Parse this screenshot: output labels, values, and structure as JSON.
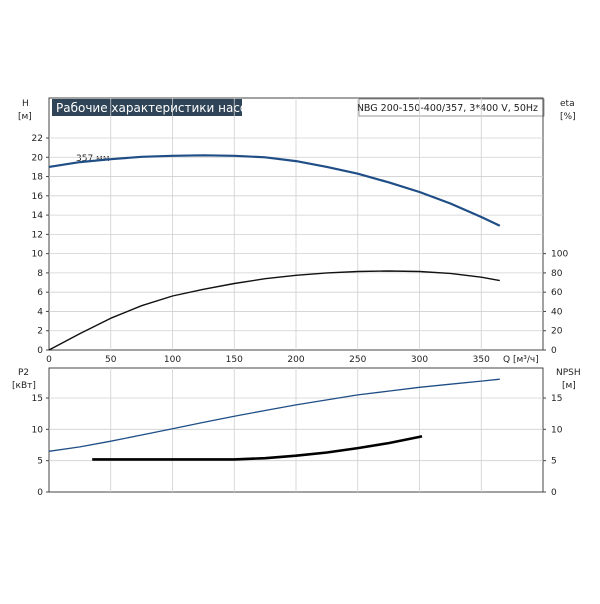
{
  "header": {
    "title": "Рабочие характеристики насоса",
    "model": "NBG 200-150-400/357, 3*400 V, 50Hz"
  },
  "colors": {
    "title_bg": "#2f4456",
    "title_text": "#ffffff",
    "head_curve": "#1f4e86",
    "eta_curve": "#111111",
    "p2_curve": "#1f4e86",
    "npsh_curve": "#000000",
    "grid": "#d0d0d0",
    "axis": "#444444"
  },
  "chart_data": [
    {
      "type": "line",
      "x_axis": {
        "label": "Q [м³/ч]",
        "xlim": [
          0,
          400
        ],
        "ticks": [
          0,
          50,
          100,
          150,
          200,
          250,
          300,
          350
        ]
      },
      "left_axis": {
        "label_top": "H",
        "label_unit": "[м]",
        "ylim": [
          0,
          24
        ],
        "ticks": [
          0,
          2,
          4,
          6,
          8,
          10,
          12,
          14,
          16,
          18,
          20,
          22
        ]
      },
      "right_axis": {
        "label_top": "eta",
        "label_unit": "[%]",
        "ylim": [
          0,
          240
        ],
        "ticks": [
          0,
          20,
          40,
          60,
          80,
          100
        ]
      },
      "annotation": "357 мм",
      "grid": true,
      "series": [
        {
          "axis": "left",
          "x": [
            0,
            25,
            50,
            75,
            100,
            125,
            150,
            175,
            200,
            225,
            250,
            275,
            300,
            325,
            350,
            365
          ],
          "y": [
            19.0,
            19.5,
            19.8,
            20.05,
            20.15,
            20.2,
            20.15,
            20.0,
            19.6,
            19.0,
            18.3,
            17.4,
            16.4,
            15.2,
            13.8,
            12.9
          ]
        },
        {
          "axis": "right",
          "x": [
            0,
            25,
            50,
            75,
            100,
            125,
            150,
            175,
            200,
            225,
            250,
            275,
            300,
            325,
            350,
            365
          ],
          "y": [
            0,
            17,
            33,
            46,
            56,
            63,
            69,
            74,
            77.5,
            80,
            81.5,
            82,
            81.5,
            79.5,
            75.5,
            72
          ]
        }
      ]
    },
    {
      "type": "line",
      "x_axis": {
        "xlim": [
          0,
          400
        ],
        "ticks": [
          0,
          50,
          100,
          150,
          200,
          250,
          300,
          350
        ]
      },
      "left_axis": {
        "label_top": "P2",
        "label_unit": "[кВт]",
        "ylim": [
          0,
          20
        ],
        "ticks": [
          0,
          5,
          10,
          15
        ]
      },
      "right_axis": {
        "label_top": "NPSH",
        "label_unit": "[м]",
        "ylim": [
          0,
          20
        ],
        "ticks": [
          0,
          5,
          10,
          15
        ]
      },
      "grid": true,
      "series": [
        {
          "axis": "left",
          "x": [
            0,
            25,
            50,
            75,
            100,
            125,
            150,
            175,
            200,
            225,
            250,
            275,
            300,
            325,
            350,
            365
          ],
          "y": [
            6.5,
            7.2,
            8.1,
            9.1,
            10.1,
            11.1,
            12.1,
            13.0,
            13.9,
            14.7,
            15.5,
            16.1,
            16.7,
            17.2,
            17.7,
            18.0
          ]
        },
        {
          "axis": "right",
          "x": [
            35,
            75,
            100,
            125,
            150,
            175,
            200,
            225,
            250,
            275,
            300,
            302
          ],
          "y": [
            5.2,
            5.2,
            5.2,
            5.2,
            5.2,
            5.4,
            5.8,
            6.3,
            7.0,
            7.8,
            8.8,
            8.9
          ]
        }
      ]
    }
  ]
}
